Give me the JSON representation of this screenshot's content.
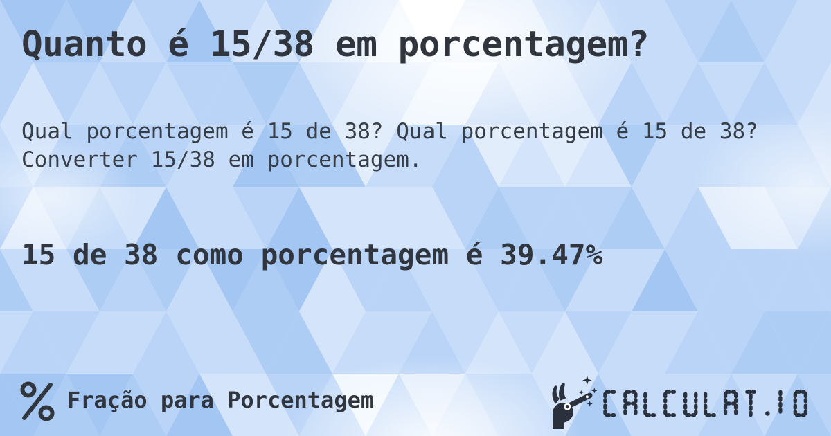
{
  "header": {
    "title": "Quanto é 15/38 em porcentagem?"
  },
  "main": {
    "question": "Qual porcentagem é 15 de 38? Qual porcentagem é 15 de 38? Converter 15/38 em porcentagem.",
    "answer": "15 de 38 como porcentagem é 39.47%"
  },
  "footer": {
    "category": "Fração para Porcentagem",
    "brand": "CALCULAT.IO"
  },
  "icons": {
    "percent_icon": "%",
    "brand_icon": "hand-with-magic-wand"
  },
  "colors": {
    "text": "#31363e",
    "logo": "#2b313c",
    "background_palette": [
      "#a4c6f3",
      "#aecdf5",
      "#bad4f7",
      "#c6dcf9",
      "#d4e4fa",
      "#e2edfc",
      "#f0f7fe",
      "#ffffff"
    ]
  }
}
